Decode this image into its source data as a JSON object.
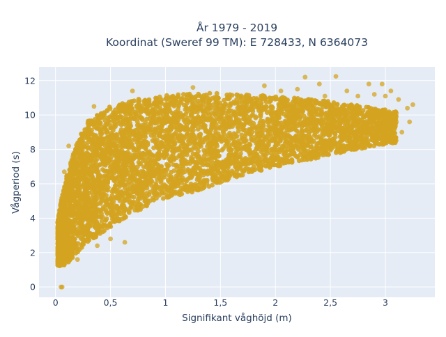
{
  "chart_data": {
    "type": "scatter",
    "title_lines": [
      "År 1979 - 2019",
      "Koordinat (Sweref 99 TM): E 728433, N 6364073"
    ],
    "xlabel": "Signifikant våghöjd (m)",
    "ylabel": "Vågperiod (s)",
    "xlim": [
      -0.15,
      3.45
    ],
    "ylim": [
      -0.6,
      12.8
    ],
    "x_ticks": [
      0,
      0.5,
      1,
      1.5,
      2,
      2.5,
      3
    ],
    "x_tick_labels": [
      "0",
      "0,5",
      "1",
      "1,5",
      "2",
      "2,5",
      "3"
    ],
    "y_ticks": [
      0,
      2,
      4,
      6,
      8,
      10,
      12
    ],
    "y_tick_labels": [
      "0",
      "2",
      "4",
      "6",
      "8",
      "10",
      "12"
    ],
    "grid": true,
    "plot_background": "#e5ecf6",
    "grid_color": "#ffffff",
    "marker_color": "#d4a420",
    "envelope": {
      "description": "dense point cloud bounded by these curves",
      "lower": [
        [
          0.02,
          1.2
        ],
        [
          0.1,
          1.3
        ],
        [
          0.2,
          2.0
        ],
        [
          0.3,
          2.6
        ],
        [
          0.5,
          3.5
        ],
        [
          0.7,
          4.3
        ],
        [
          1.0,
          5.1
        ],
        [
          1.3,
          5.6
        ],
        [
          1.6,
          6.3
        ],
        [
          2.0,
          7.0
        ],
        [
          2.3,
          7.4
        ],
        [
          2.6,
          7.8
        ],
        [
          2.9,
          8.2
        ],
        [
          3.1,
          8.4
        ]
      ],
      "upper": [
        [
          0.02,
          3.8
        ],
        [
          0.05,
          5.0
        ],
        [
          0.1,
          6.5
        ],
        [
          0.2,
          8.5
        ],
        [
          0.3,
          9.7
        ],
        [
          0.5,
          10.5
        ],
        [
          0.8,
          11.0
        ],
        [
          1.1,
          11.2
        ],
        [
          1.5,
          11.3
        ],
        [
          1.8,
          11.2
        ],
        [
          2.2,
          11.0
        ],
        [
          2.5,
          10.8
        ],
        [
          2.8,
          10.5
        ],
        [
          3.1,
          10.2
        ],
        [
          3.2,
          9.8
        ]
      ]
    },
    "outliers": [
      [
        0.05,
        0.0
      ],
      [
        0.06,
        0.0
      ],
      [
        2.27,
        12.2
      ],
      [
        2.55,
        12.25
      ],
      [
        2.85,
        11.8
      ],
      [
        2.97,
        11.8
      ],
      [
        3.05,
        11.4
      ],
      [
        3.0,
        11.1
      ],
      [
        3.12,
        10.9
      ],
      [
        3.25,
        10.6
      ],
      [
        3.2,
        10.4
      ],
      [
        3.1,
        10.1
      ],
      [
        2.9,
        11.2
      ],
      [
        2.65,
        11.4
      ],
      [
        2.75,
        11.1
      ],
      [
        2.4,
        11.8
      ],
      [
        2.2,
        11.5
      ],
      [
        1.9,
        11.7
      ],
      [
        2.95,
        8.3
      ],
      [
        3.08,
        8.4
      ],
      [
        3.15,
        9.0
      ],
      [
        3.1,
        9.6
      ],
      [
        3.0,
        10.2
      ],
      [
        2.6,
        8.6
      ],
      [
        2.8,
        8.8
      ],
      [
        3.22,
        9.6
      ],
      [
        2.45,
        11.1
      ],
      [
        2.05,
        11.4
      ],
      [
        1.25,
        11.6
      ],
      [
        0.7,
        11.4
      ],
      [
        0.35,
        10.5
      ],
      [
        0.12,
        8.2
      ],
      [
        0.08,
        6.7
      ],
      [
        0.63,
        2.6
      ],
      [
        0.5,
        2.8
      ],
      [
        0.38,
        2.4
      ],
      [
        0.02,
        1.9
      ],
      [
        0.04,
        1.3
      ],
      [
        0.2,
        1.6
      ]
    ]
  }
}
